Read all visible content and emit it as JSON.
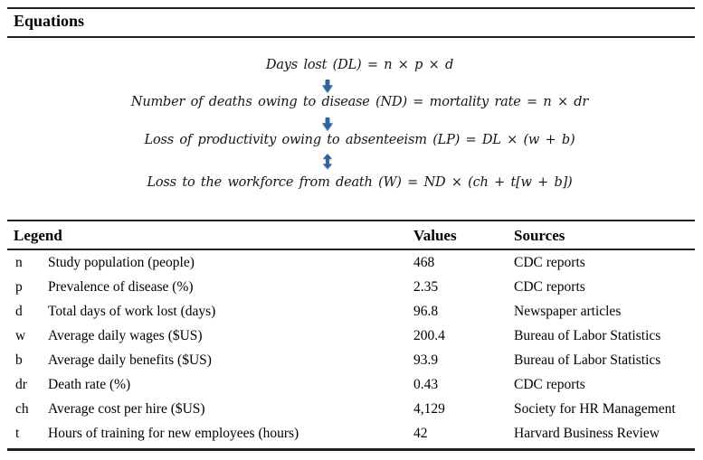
{
  "section": {
    "title": "Equations"
  },
  "equations": {
    "items": [
      {
        "text": "Days lost (DL) = n × p × d"
      },
      {
        "text": "Number of deaths owing to disease (ND) = mortality rate = n × dr"
      },
      {
        "text": "Loss of productivity owing to absenteeism (LP) = DL × (w + b)"
      },
      {
        "text": "Loss to the workforce from death (W) = ND × (ch + t[w + b])"
      }
    ],
    "arrows": [
      "down",
      "down",
      "up-down"
    ],
    "arrow_color": "#2f639c"
  },
  "table": {
    "headers": [
      "Legend",
      "Values",
      "Sources"
    ],
    "rows": [
      {
        "symbol": "n",
        "description": "Study population (people)",
        "value": "468",
        "source": "CDC reports"
      },
      {
        "symbol": "p",
        "description": "Prevalence of disease (%)",
        "value": "2.35",
        "source": "CDC reports"
      },
      {
        "symbol": "d",
        "description": "Total days of work lost (days)",
        "value": "96.8",
        "source": "Newspaper articles"
      },
      {
        "symbol": "w",
        "description": "Average daily wages ($US)",
        "value": "200.4",
        "source": "Bureau of Labor Statistics"
      },
      {
        "symbol": "b",
        "description": "Average daily benefits ($US)",
        "value": "93.9",
        "source": "Bureau of Labor Statistics"
      },
      {
        "symbol": "dr",
        "description": "Death rate (%)",
        "value": "0.43",
        "source": "CDC reports"
      },
      {
        "symbol": "ch",
        "description": "Average cost per hire ($US)",
        "value": "4,129",
        "source": "Society for HR Management"
      },
      {
        "symbol": "t",
        "description": "Hours of training for new employees (hours)",
        "value": "42",
        "source": "Harvard Business Review"
      }
    ]
  }
}
